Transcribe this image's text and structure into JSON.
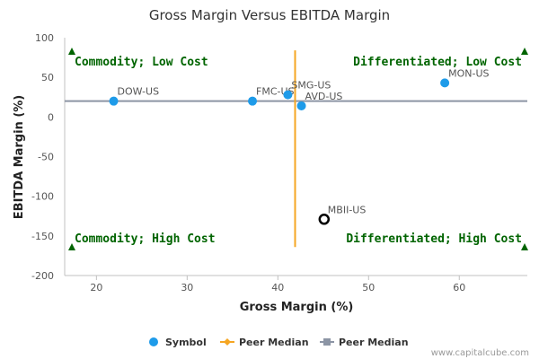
{
  "chart_data": {
    "type": "scatter",
    "title": "Gross Margin Versus EBITDA Margin",
    "xlabel": "Gross Margin (%)",
    "ylabel": "EBITDA Margin (%)",
    "xlim": [
      16.5,
      67.5
    ],
    "ylim": [
      -200,
      100
    ],
    "xticks": [
      20,
      30,
      40,
      50,
      60
    ],
    "yticks": [
      100,
      50,
      0,
      -50,
      -100,
      -150,
      -200
    ],
    "grid": false,
    "legend_position": "bottom",
    "points": [
      {
        "label": "DOW-US",
        "x": 21.9,
        "y": 20,
        "style": "symbol"
      },
      {
        "label": "FMC-US",
        "x": 37.2,
        "y": 20,
        "style": "symbol"
      },
      {
        "label": "SMG-US",
        "x": 41.1,
        "y": 28,
        "style": "symbol"
      },
      {
        "label": "AVD-US",
        "x": 42.6,
        "y": 14,
        "style": "symbol"
      },
      {
        "label": "MON-US",
        "x": 58.4,
        "y": 43,
        "style": "symbol"
      },
      {
        "label": "MBII-US",
        "x": 45.1,
        "y": -129,
        "style": "highlight"
      }
    ],
    "peer_median_gross_margin": 41.9,
    "peer_median_gross_margin_yrange": [
      -164,
      84
    ],
    "peer_median_ebitda_margin": 20,
    "quadrants": {
      "top_left": "Commodity; Low Cost",
      "top_right": "Differentiated; Low Cost",
      "bottom_left": "Commodity; High Cost",
      "bottom_right": "Differentiated; High Cost"
    },
    "legend": [
      {
        "label": "Symbol",
        "marker": "circle",
        "color": "#1e9be9"
      },
      {
        "label": "Peer Median",
        "marker": "diamond-line",
        "color": "#f5a623"
      },
      {
        "label": "Peer Median",
        "marker": "square-line",
        "color": "#8c95a5"
      }
    ],
    "colors": {
      "symbol": "#1e9be9",
      "highlight_stroke": "#000000",
      "vertical_median": "#f5a623",
      "horizontal_median": "#8c95a5",
      "quadrant_text": "#006400"
    }
  },
  "credit": "www.capitalcube.com"
}
